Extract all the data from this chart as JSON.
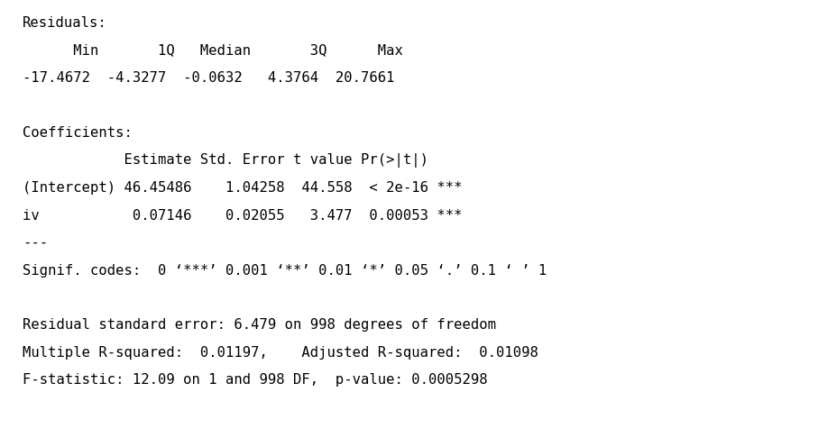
{
  "background_color": "#ffffff",
  "text_color": "#000000",
  "font_family": "monospace",
  "font_size": 11.2,
  "lines": [
    "Residuals:",
    "      Min       1Q   Median       3Q      Max",
    "-17.4672  -4.3277  -0.0632   4.3764  20.7661",
    "",
    "Coefficients:",
    "            Estimate Std. Error t value Pr(>|t|)    ",
    "(Intercept) 46.45486    1.04258  44.558  < 2e-16 ***",
    "iv           0.07146    0.02055   3.477  0.00053 ***",
    "---",
    "Signif. codes:  0 ‘***’ 0.001 ‘**’ 0.01 ‘*’ 0.05 ‘.’ 0.1 ‘ ’ 1",
    "",
    "Residual standard error: 6.479 on 998 degrees of freedom",
    "Multiple R-squared:  0.01197,    Adjusted R-squared:  0.01098",
    "F-statistic: 12.09 on 1 and 998 DF,  p-value: 0.0005298"
  ]
}
